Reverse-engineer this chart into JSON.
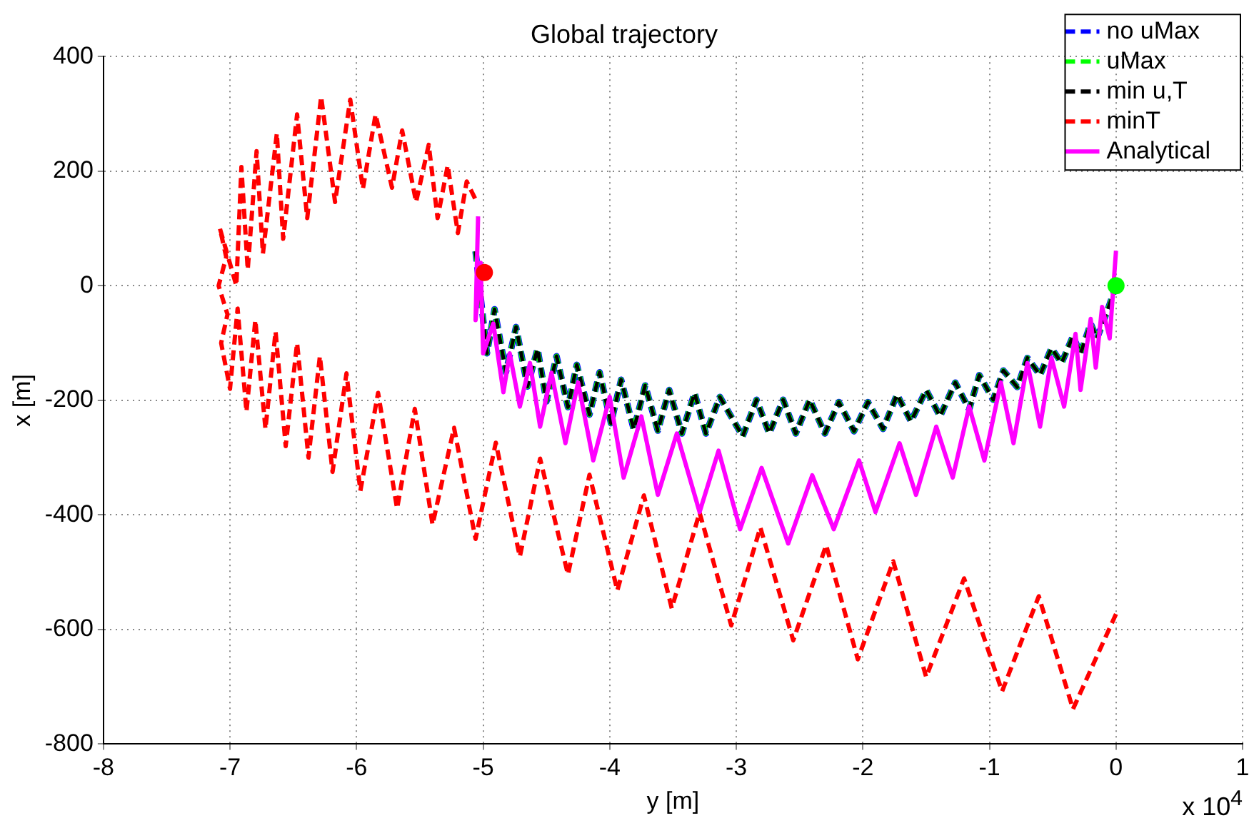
{
  "chart_data": {
    "type": "line",
    "title": "Global trajectory",
    "xlabel": "y [m]",
    "ylabel": "x [m]",
    "annotations": [
      "x 10$^{4}$"
    ],
    "xlim": [
      -8,
      1
    ],
    "xticks": [
      -8,
      -7,
      -6,
      -5,
      -4,
      -3,
      -2,
      -1,
      0,
      1
    ],
    "ylim": [
      -800,
      400
    ],
    "yticks": [
      -800,
      -600,
      -400,
      -200,
      0,
      200,
      400
    ],
    "grid": true,
    "legend": "top right",
    "marker": "none",
    "series": [
      {
        "name": "no uMax",
        "color": "#0000ff",
        "line_style": "dashed",
        "x": [
          -5.06,
          -4.97,
          -4.91,
          -4.82,
          -4.74,
          -4.65,
          -4.57,
          -4.5,
          -4.42,
          -4.33,
          -4.26,
          -4.16,
          -4.08,
          -3.99,
          -3.91,
          -3.81,
          -3.72,
          -3.62,
          -3.53,
          -3.43,
          -3.33,
          -3.24,
          -3.13,
          -2.95,
          -2.84,
          -2.74,
          -2.63,
          -2.53,
          -2.42,
          -2.3,
          -2.19,
          -2.07,
          -1.96,
          -1.84,
          -1.73,
          -1.62,
          -1.5,
          -1.39,
          -1.27,
          -1.16,
          -1.08,
          -0.97,
          -0.89,
          -0.78,
          -0.7,
          -0.6,
          -0.51,
          -0.43,
          -0.34,
          -0.28,
          -0.2,
          -0.15,
          -0.07,
          0
        ],
        "values": [
          60,
          -118,
          -41,
          -151,
          -72,
          -176,
          -110,
          -202,
          -123,
          -212,
          -138,
          -225,
          -151,
          -240,
          -164,
          -251,
          -174,
          -253,
          -182,
          -258,
          -187,
          -258,
          -194,
          -263,
          -199,
          -258,
          -199,
          -258,
          -199,
          -258,
          -203,
          -254,
          -203,
          -250,
          -190,
          -237,
          -182,
          -228,
          -169,
          -216,
          -156,
          -199,
          -148,
          -177,
          -126,
          -156,
          -109,
          -135,
          -88,
          -118,
          -66,
          -92,
          -45,
          0
        ]
      },
      {
        "name": "uMax",
        "color": "#00ff00",
        "line_style": "dashed",
        "x": [
          -5.06,
          -4.97,
          -4.91,
          -4.82,
          -4.74,
          -4.65,
          -4.57,
          -4.5,
          -4.42,
          -4.33,
          -4.26,
          -4.16,
          -4.08,
          -3.99,
          -3.91,
          -3.81,
          -3.72,
          -3.62,
          -3.53,
          -3.43,
          -3.33,
          -3.24,
          -3.13,
          -2.95,
          -2.84,
          -2.74,
          -2.63,
          -2.53,
          -2.42,
          -2.3,
          -2.19,
          -2.07,
          -1.96,
          -1.84,
          -1.73,
          -1.62,
          -1.5,
          -1.39,
          -1.27,
          -1.16,
          -1.08,
          -0.97,
          -0.89,
          -0.78,
          -0.7,
          -0.6,
          -0.51,
          -0.43,
          -0.34,
          -0.28,
          -0.2,
          -0.15,
          -0.07,
          0
        ],
        "values": [
          60,
          -118,
          -41,
          -151,
          -72,
          -176,
          -110,
          -202,
          -123,
          -212,
          -138,
          -225,
          -151,
          -240,
          -164,
          -251,
          -174,
          -253,
          -182,
          -258,
          -187,
          -258,
          -194,
          -263,
          -199,
          -258,
          -199,
          -258,
          -199,
          -258,
          -203,
          -254,
          -203,
          -250,
          -190,
          -237,
          -182,
          -228,
          -169,
          -216,
          -156,
          -199,
          -148,
          -177,
          -126,
          -156,
          -109,
          -135,
          -88,
          -118,
          -66,
          -92,
          -45,
          0
        ]
      },
      {
        "name": "min u,T",
        "color": "#000000",
        "line_style": "dashed",
        "x": [
          -5.06,
          -4.97,
          -4.91,
          -4.82,
          -4.74,
          -4.65,
          -4.57,
          -4.5,
          -4.42,
          -4.33,
          -4.26,
          -4.16,
          -4.08,
          -3.99,
          -3.91,
          -3.81,
          -3.72,
          -3.62,
          -3.53,
          -3.43,
          -3.33,
          -3.24,
          -3.13,
          -2.95,
          -2.84,
          -2.74,
          -2.63,
          -2.53,
          -2.42,
          -2.3,
          -2.19,
          -2.07,
          -1.96,
          -1.84,
          -1.73,
          -1.62,
          -1.5,
          -1.39,
          -1.27,
          -1.16,
          -1.08,
          -0.97,
          -0.89,
          -0.78,
          -0.7,
          -0.6,
          -0.51,
          -0.43,
          -0.34,
          -0.28,
          -0.2,
          -0.15,
          -0.07,
          0
        ],
        "values": [
          60,
          -118,
          -41,
          -151,
          -72,
          -176,
          -110,
          -202,
          -123,
          -212,
          -138,
          -225,
          -151,
          -240,
          -164,
          -251,
          -174,
          -253,
          -182,
          -258,
          -187,
          -258,
          -194,
          -263,
          -199,
          -258,
          -199,
          -258,
          -199,
          -258,
          -203,
          -254,
          -203,
          -250,
          -190,
          -237,
          -182,
          -228,
          -169,
          -216,
          -156,
          -199,
          -148,
          -177,
          -126,
          -156,
          -109,
          -135,
          -88,
          -118,
          -66,
          -92,
          -45,
          0
        ]
      },
      {
        "name": "minT",
        "color": "#ff0000",
        "line_style": "dashed",
        "x": [
          0,
          -0.34,
          -0.61,
          -0.9,
          -1.2,
          -1.5,
          -1.76,
          -2.04,
          -2.29,
          -2.55,
          -2.81,
          -3.04,
          -3.29,
          -3.51,
          -3.73,
          -3.94,
          -4.16,
          -4.33,
          -4.55,
          -4.71,
          -4.9,
          -5.06,
          -5.23,
          -5.4,
          -5.54,
          -5.68,
          -5.83,
          -5.97,
          -6.08,
          -6.19,
          -6.29,
          -6.38,
          -6.47,
          -6.56,
          -6.64,
          -6.72,
          -6.8,
          -6.87,
          -6.94,
          -7,
          -7.07,
          -7.02,
          -7.09,
          -7.03,
          -7.08,
          -6.95,
          -6.91,
          -6.86,
          -6.79,
          -6.74,
          -6.63,
          -6.58,
          -6.47,
          -6.39,
          -6.28,
          -6.17,
          -6.05,
          -5.95,
          -5.85,
          -5.72,
          -5.64,
          -5.53,
          -5.43,
          -5.36,
          -5.28,
          -5.2,
          -5.13,
          -5.05
        ],
        "values": [
          -573,
          -739,
          -542,
          -708,
          -511,
          -683,
          -481,
          -652,
          -453,
          -619,
          -422,
          -593,
          -396,
          -563,
          -366,
          -532,
          -330,
          -504,
          -302,
          -473,
          -274,
          -442,
          -248,
          -417,
          -215,
          -389,
          -187,
          -358,
          -153,
          -325,
          -123,
          -300,
          -100,
          -280,
          -80,
          -250,
          -60,
          -220,
          -40,
          -180,
          -100,
          -50,
          0,
          50,
          100,
          0,
          207,
          28,
          235,
          56,
          266,
          82,
          299,
          118,
          330,
          146,
          325,
          169,
          299,
          171,
          271,
          146,
          246,
          118,
          210,
          92,
          182,
          146
        ]
      },
      {
        "name": "Analytical",
        "color": "#ff00ff",
        "line_style": "solid",
        "x": [
          -5.04,
          -5.06,
          -5.02,
          -5,
          -4.92,
          -4.84,
          -4.79,
          -4.71,
          -4.63,
          -4.55,
          -4.46,
          -4.35,
          -4.25,
          -4.13,
          -4,
          -3.89,
          -3.75,
          -3.62,
          -3.47,
          -3.29,
          -3.14,
          -2.97,
          -2.8,
          -2.59,
          -2.4,
          -2.23,
          -2.03,
          -1.9,
          -1.71,
          -1.58,
          -1.42,
          -1.29,
          -1.16,
          -1.04,
          -0.91,
          -0.81,
          -0.7,
          -0.6,
          -0.51,
          -0.41,
          -0.32,
          -0.28,
          -0.2,
          -0.16,
          -0.11,
          -0.05,
          0
        ],
        "values": [
          121,
          -60,
          40,
          -118,
          -66,
          -186,
          -118,
          -211,
          -135,
          -246,
          -152,
          -275,
          -169,
          -305,
          -194,
          -335,
          -228,
          -365,
          -258,
          -395,
          -288,
          -425,
          -318,
          -450,
          -331,
          -425,
          -305,
          -395,
          -275,
          -365,
          -246,
          -335,
          -211,
          -305,
          -169,
          -275,
          -135,
          -246,
          -126,
          -211,
          -84,
          -182,
          -58,
          -143,
          -37,
          -92,
          61
        ]
      },
      {
        "type": "scatter",
        "color": "#ff0000",
        "marker": "circle",
        "x": [
          -4.99
        ],
        "values": [
          23
        ]
      },
      {
        "type": "scatter",
        "color": "#00ff00",
        "marker": "circle",
        "x": [
          0
        ],
        "values": [
          0
        ]
      }
    ]
  }
}
